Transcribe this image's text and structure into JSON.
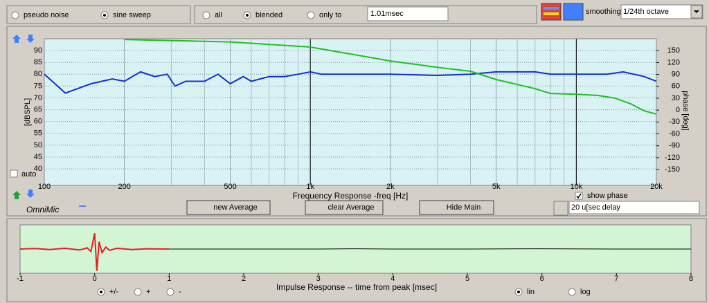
{
  "toolbar": {
    "excitation": {
      "options": [
        "pseudo noise",
        "sine sweep"
      ],
      "selected": 1
    },
    "window": {
      "options": [
        "all",
        "blended",
        "only to"
      ],
      "selected": 1,
      "value": "1.01msec"
    },
    "smoothing_label": "smoothing",
    "smoothing": "1/24th octave"
  },
  "frequency_chart": {
    "type": "line",
    "xlabel": "Frequency Response -freq [Hz]",
    "ylabel": "[dBSPL]",
    "y2label": "phase [deg]",
    "log_x": true,
    "grid": true,
    "background": "#d9f2f4",
    "xlim": [
      100,
      20000
    ],
    "xticks": [
      100,
      200,
      500,
      {
        "value": 1000,
        "label": "1k"
      },
      {
        "value": 2000,
        "label": "2k"
      },
      {
        "value": 5000,
        "label": "5k"
      },
      {
        "value": 10000,
        "label": "10k"
      },
      {
        "value": 20000,
        "label": "20k"
      }
    ],
    "minor_xticks": [
      300,
      400,
      600,
      700,
      800,
      900,
      3000,
      4000,
      6000,
      7000,
      8000,
      9000
    ],
    "cursors": [
      1000,
      10000
    ],
    "ylim": [
      33,
      95
    ],
    "yticks": [
      90,
      85,
      80,
      75,
      70,
      65,
      60,
      55,
      50,
      45,
      40
    ],
    "y2lim": [
      -190,
      180
    ],
    "y2ticks": [
      150,
      120,
      90,
      60,
      30,
      0,
      -30,
      -60,
      -90,
      -120,
      -150
    ],
    "series": [
      {
        "color": "#1030d0",
        "x": [
          100,
          120,
          150,
          180,
          200,
          230,
          260,
          290,
          310,
          340,
          400,
          450,
          500,
          560,
          600,
          700,
          800,
          900,
          1000,
          1100,
          1500,
          2000,
          3000,
          4000,
          5000,
          7000,
          8000,
          10000,
          13000,
          15000,
          18000,
          20000
        ],
        "values": [
          80,
          72,
          76,
          78,
          77,
          81,
          79,
          80,
          75,
          77,
          77,
          80,
          76,
          79,
          77,
          79,
          79,
          80,
          81,
          80,
          80,
          80,
          79.5,
          80,
          81,
          81,
          80,
          80,
          80,
          81,
          79,
          77
        ]
      },
      {
        "color": "#20c020",
        "axis": "y2",
        "x": [
          200,
          500,
          1000,
          2000,
          3000,
          4000,
          5000,
          7000,
          8000,
          10000,
          12000,
          14000,
          16000,
          18000,
          20000
        ],
        "values": [
          178,
          172,
          159,
          124,
          108,
          98,
          77,
          54,
          42,
          40,
          37,
          30,
          16,
          -2,
          -10
        ]
      }
    ]
  },
  "controls": {
    "auto": {
      "label": "auto",
      "checked": false
    },
    "show_phase": {
      "label": "show phase",
      "checked": true
    },
    "brand": "OmniMic",
    "buttons": [
      {
        "label": "new Average",
        "enabled": true
      },
      {
        "label": "clear Average",
        "enabled": false
      },
      {
        "label": "Hide Main",
        "enabled": true
      }
    ],
    "delay": "20 u[sec delay"
  },
  "impulse_chart": {
    "type": "line",
    "xlabel": "Impulse Response  -- time from peak [msec]",
    "background": "#d4f5d4",
    "xlim": [
      -1,
      8
    ],
    "xticks": [
      -1,
      0,
      1,
      2,
      3,
      4,
      5,
      6,
      7,
      8
    ],
    "ylim": [
      -1,
      1
    ],
    "series": [
      {
        "color": "#e02020",
        "x": [
          -1,
          -0.8,
          -0.6,
          -0.4,
          -0.2,
          -0.1,
          -0.05,
          0,
          0.03,
          0.06,
          0.1,
          0.15,
          0.2,
          0.3,
          0.5,
          0.7,
          1
        ],
        "values": [
          0,
          0.02,
          -0.02,
          0.03,
          -0.04,
          0.05,
          -0.1,
          0.65,
          -0.9,
          0.3,
          -0.15,
          0.08,
          -0.05,
          0.03,
          -0.02,
          0.01,
          0
        ]
      },
      {
        "color": "#000000",
        "x": [
          1,
          2,
          3,
          3.5,
          4,
          5,
          6,
          7,
          8
        ],
        "values": [
          0,
          0,
          0,
          0.01,
          0,
          0,
          0.01,
          0,
          0
        ]
      }
    ],
    "sign": {
      "options": [
        "+/-",
        "+",
        "-"
      ],
      "selected": 0
    },
    "scale": {
      "options": [
        "lin",
        "log"
      ],
      "selected": 0
    }
  }
}
